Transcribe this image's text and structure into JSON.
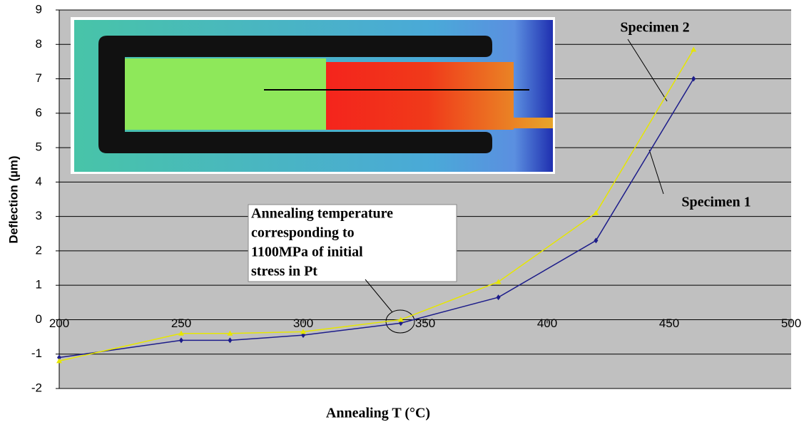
{
  "chart_data": {
    "type": "line",
    "x_label": "Annealing T (°C)",
    "y_label": "Deflection (µm)",
    "xlim": [
      200,
      500
    ],
    "xticks": [
      200,
      250,
      300,
      350,
      400,
      450,
      500
    ],
    "ylim": [
      -2,
      9
    ],
    "yticks": [
      -2,
      -1,
      0,
      1,
      2,
      3,
      4,
      5,
      6,
      7,
      8,
      9
    ],
    "grid": true,
    "series": [
      {
        "name": "Specimen 1",
        "color": "#1c1c8a",
        "marker": "diamond",
        "x": [
          200,
          250,
          270,
          300,
          340,
          380,
          420,
          460
        ],
        "values": [
          -1.1,
          -0.6,
          -0.6,
          -0.45,
          -0.1,
          0.65,
          2.3,
          7.0
        ]
      },
      {
        "name": "Specimen 2",
        "color": "#e6e600",
        "marker": "triangle",
        "x": [
          200,
          250,
          270,
          300,
          340,
          380,
          420,
          460
        ],
        "values": [
          -1.2,
          -0.4,
          -0.4,
          -0.35,
          0.0,
          1.1,
          3.1,
          7.85
        ]
      }
    ],
    "annotation": [
      "Annealing temperature",
      "corresponding to",
      "1100MPa of initial",
      "stress in Pt"
    ]
  }
}
